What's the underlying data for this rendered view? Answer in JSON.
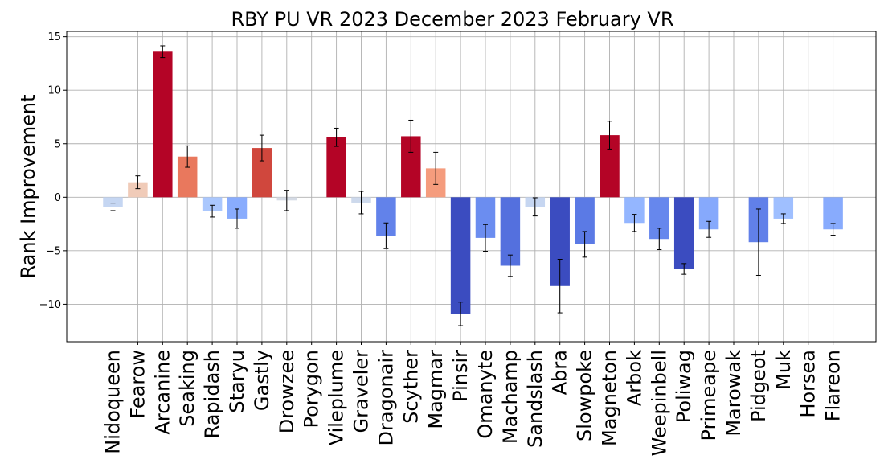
{
  "chart_data": {
    "type": "bar",
    "title": "RBY PU VR 2023 December 2023 February VR",
    "ylabel": "Rank Improvement",
    "xlabel": "",
    "ylim": [
      -13.5,
      15.5
    ],
    "yticks": [
      -10,
      -5,
      0,
      5,
      10,
      15
    ],
    "grid": true,
    "colormap": "coolwarm",
    "categories": [
      "Nidoqueen",
      "Fearow",
      "Arcanine",
      "Seaking",
      "Rapidash",
      "Staryu",
      "Gastly",
      "Drowzee",
      "Porygon",
      "Vileplume",
      "Graveler",
      "Dragonair",
      "Scyther",
      "Magmar",
      "Pinsir",
      "Omanyte",
      "Machamp",
      "Sandslash",
      "Abra",
      "Slowpoke",
      "Magneton",
      "Arbok",
      "Weepinbell",
      "Poliwag",
      "Primeape",
      "Marowak",
      "Pidgeot",
      "Muk",
      "Horsea",
      "Flareon"
    ],
    "values": [
      -0.9,
      1.4,
      13.6,
      3.8,
      -1.3,
      -2.0,
      4.6,
      -0.3,
      0,
      5.6,
      -0.5,
      -3.6,
      5.7,
      2.7,
      -10.9,
      -3.8,
      -6.4,
      -0.9,
      -8.3,
      -4.4,
      5.8,
      -2.4,
      -3.9,
      -6.7,
      -3.0,
      0,
      -4.2,
      -2.0,
      0,
      -3.0
    ],
    "error": [
      0.35,
      0.6,
      0.55,
      1.0,
      0.55,
      0.9,
      1.2,
      0.95,
      0,
      0.85,
      1.05,
      1.2,
      1.5,
      1.5,
      1.1,
      1.25,
      1.0,
      0.85,
      2.5,
      1.2,
      1.3,
      0.8,
      1.0,
      0.5,
      0.75,
      0,
      3.1,
      0.45,
      0,
      0.55
    ],
    "colors": [
      "#c5d6f2",
      "#f0cbb8",
      "#b40426",
      "#e9785d",
      "#aac7fd",
      "#89acfd",
      "#d0473d",
      "#d5dbe5",
      "#dddcdc",
      "#b40426",
      "#cdd9ec",
      "#6282ea",
      "#b40426",
      "#f59c7d",
      "#3b4cc0",
      "#6b8df0",
      "#5470de",
      "#c6d6f1",
      "#3b4cc0",
      "#5b7ae5",
      "#b40426",
      "#94b6ff",
      "#6687ed",
      "#3b4cc0",
      "#86a9fc",
      "#dddcdc",
      "#6180e9",
      "#9fbfff",
      "#dddcdc",
      "#88abfd"
    ]
  }
}
